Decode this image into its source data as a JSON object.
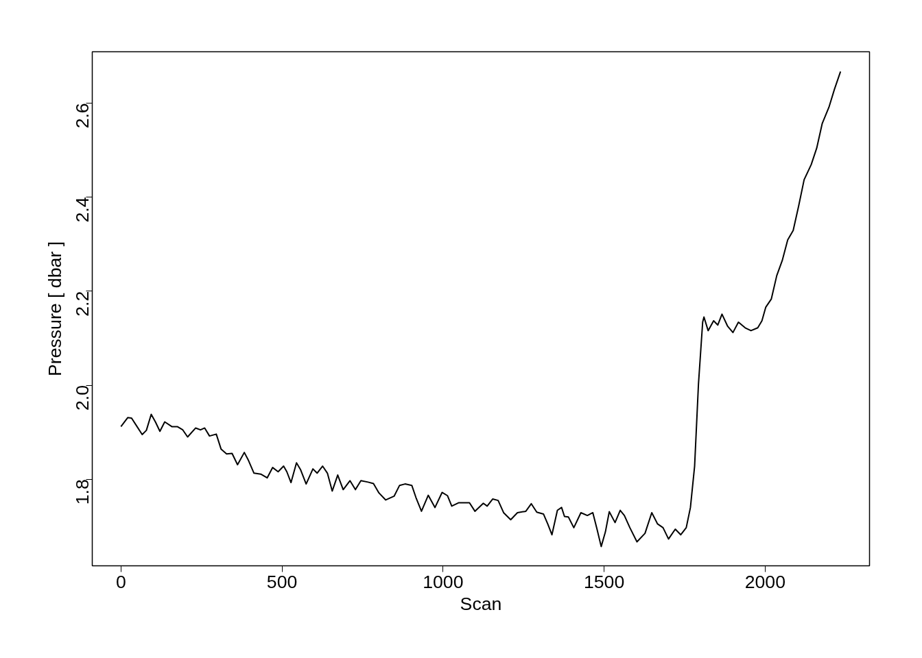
{
  "chart_data": {
    "type": "line",
    "xlabel": "Scan",
    "ylabel": "Pressure [ dbar ]",
    "xlim": [
      -89,
      2324
    ],
    "ylim": [
      1.616,
      2.709
    ],
    "xticks": [
      0,
      500,
      1000,
      1500,
      2000
    ],
    "yticks": [
      {
        "value": 1.8,
        "label": "1.8"
      },
      {
        "value": 2.0,
        "label": "2.0"
      },
      {
        "value": 2.2,
        "label": "2.2"
      },
      {
        "value": 2.4,
        "label": "2.4"
      },
      {
        "value": 2.6,
        "label": "2.6"
      }
    ],
    "grid": false,
    "series": [
      {
        "color": "#000000",
        "x": [
          0,
          21,
          33,
          50,
          66,
          79,
          94,
          107,
          121,
          136,
          158,
          175,
          192,
          207,
          232,
          247,
          260,
          275,
          296,
          311,
          328,
          345,
          362,
          383,
          396,
          413,
          434,
          454,
          471,
          488,
          505,
          515,
          528,
          545,
          558,
          575,
          596,
          609,
          626,
          641,
          656,
          673,
          690,
          711,
          728,
          745,
          767,
          784,
          801,
          822,
          848,
          865,
          882,
          903,
          916,
          933,
          954,
          975,
          997,
          1014,
          1027,
          1048,
          1082,
          1099,
          1125,
          1137,
          1154,
          1171,
          1188,
          1210,
          1231,
          1257,
          1274,
          1291,
          1312,
          1325,
          1338,
          1355,
          1368,
          1377,
          1389,
          1406,
          1428,
          1448,
          1465,
          1478,
          1491,
          1504,
          1516,
          1534,
          1550,
          1563,
          1580,
          1602,
          1627,
          1648,
          1666,
          1683,
          1700,
          1721,
          1738,
          1755,
          1768,
          1781,
          1793,
          1806,
          1810,
          1823,
          1840,
          1853,
          1866,
          1883,
          1900,
          1917,
          1938,
          1956,
          1977,
          1990,
          2002,
          2019,
          2036,
          2053,
          2070,
          2087,
          2104,
          2121,
          2143,
          2160,
          2177,
          2198,
          2215,
          2234
        ],
        "values": [
          1.912,
          1.931,
          1.93,
          1.912,
          1.895,
          1.904,
          1.938,
          1.922,
          1.902,
          1.922,
          1.912,
          1.912,
          1.905,
          1.89,
          1.909,
          1.905,
          1.909,
          1.892,
          1.896,
          1.864,
          1.854,
          1.855,
          1.831,
          1.857,
          1.84,
          1.813,
          1.811,
          1.803,
          1.825,
          1.816,
          1.828,
          1.816,
          1.793,
          1.835,
          1.82,
          1.79,
          1.822,
          1.813,
          1.828,
          1.813,
          1.775,
          1.809,
          1.778,
          1.797,
          1.778,
          1.797,
          1.794,
          1.791,
          1.771,
          1.756,
          1.764,
          1.787,
          1.79,
          1.787,
          1.761,
          1.732,
          1.766,
          1.74,
          1.772,
          1.765,
          1.743,
          1.75,
          1.75,
          1.732,
          1.749,
          1.743,
          1.758,
          1.755,
          1.729,
          1.714,
          1.729,
          1.732,
          1.748,
          1.73,
          1.726,
          1.705,
          1.682,
          1.734,
          1.74,
          1.721,
          1.72,
          1.697,
          1.729,
          1.723,
          1.729,
          1.694,
          1.657,
          1.688,
          1.731,
          1.708,
          1.734,
          1.723,
          1.697,
          1.667,
          1.685,
          1.729,
          1.705,
          1.697,
          1.673,
          1.694,
          1.682,
          1.697,
          1.74,
          1.828,
          2.003,
          2.134,
          2.145,
          2.116,
          2.137,
          2.128,
          2.151,
          2.126,
          2.112,
          2.134,
          2.122,
          2.116,
          2.122,
          2.137,
          2.166,
          2.183,
          2.233,
          2.265,
          2.309,
          2.329,
          2.381,
          2.437,
          2.469,
          2.504,
          2.556,
          2.591,
          2.629,
          2.667
        ]
      }
    ]
  }
}
